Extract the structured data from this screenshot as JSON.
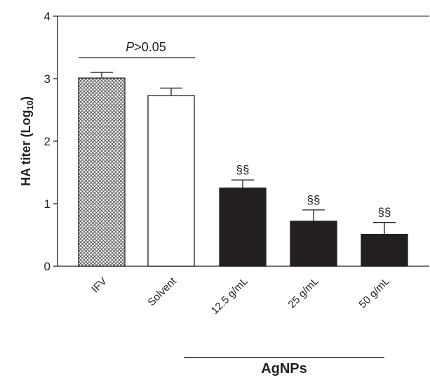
{
  "chart_data": {
    "type": "bar",
    "categories": [
      "IFV",
      "Solvent",
      "12.5 g/mL",
      "25 g/mL",
      "50 g/mL"
    ],
    "values": [
      3.01,
      2.73,
      1.25,
      0.72,
      0.51
    ],
    "errors": [
      0.09,
      0.12,
      0.13,
      0.18,
      0.19
    ],
    "bar_colors": [
      "#b9b9b9",
      "#ffffff",
      "#231f20",
      "#231f20",
      "#231f20"
    ],
    "bar_patterns": [
      "crosshatch",
      "none",
      "solid",
      "solid",
      "solid"
    ],
    "annotations": [
      "",
      "",
      "§§",
      "§§",
      "§§"
    ],
    "ylabel_main": "HA titer (Log",
    "ylabel_sub": "10",
    "ylabel_end": ")",
    "yticks": [
      "0",
      "1",
      "2",
      "3",
      "4"
    ],
    "ylim": [
      0,
      4
    ],
    "comparison": {
      "italic": "P",
      "text": ">0.05",
      "between": [
        "IFV",
        "Solvent"
      ]
    },
    "group_label": "AgNPs",
    "group_members": [
      "12.5 g/mL",
      "25 g/mL",
      "50 g/mL"
    ],
    "grid": false
  }
}
